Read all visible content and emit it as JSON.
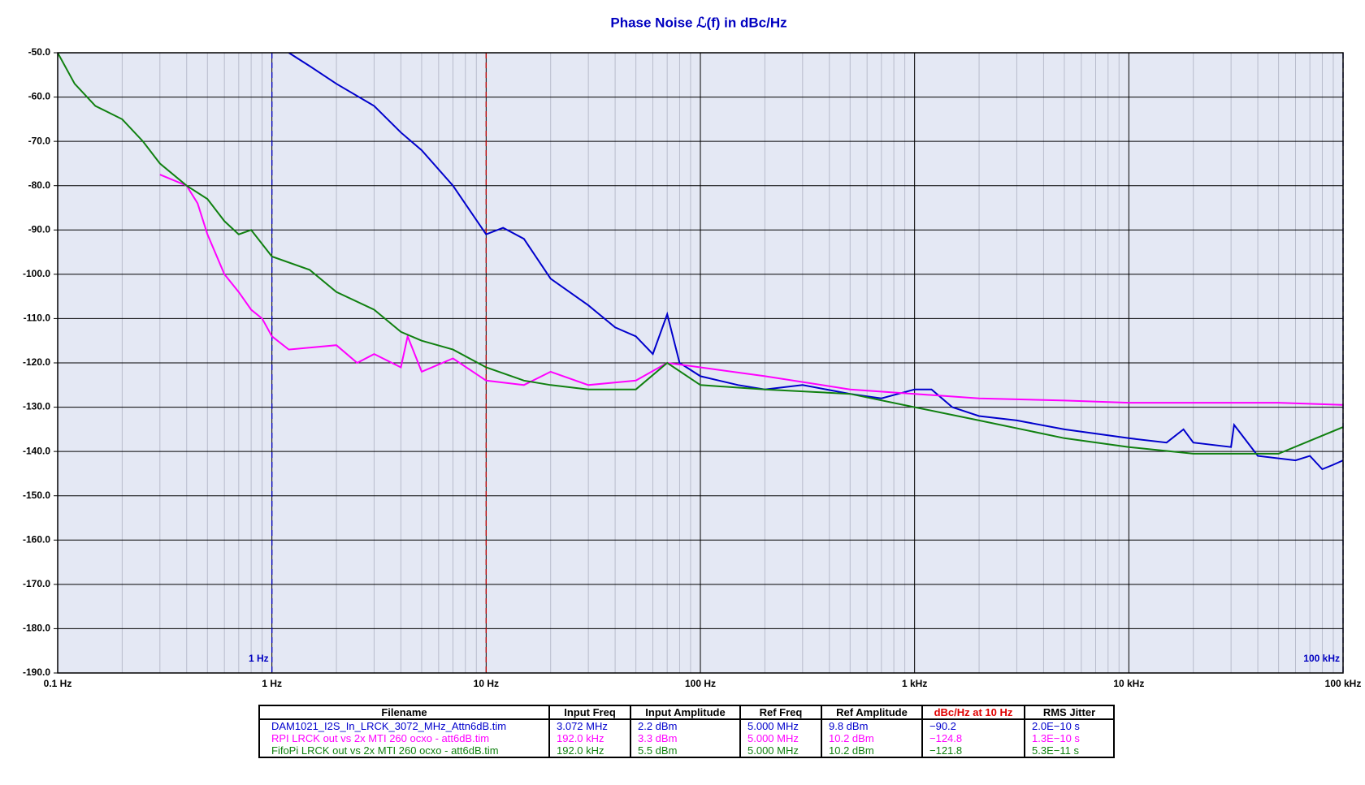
{
  "chart_data": {
    "type": "line",
    "title": "Phase Noise ℒ(f) in dBc/Hz",
    "log_x": true,
    "grid": true,
    "xlim": [
      0.1,
      100000
    ],
    "xticks": [
      {
        "value": 0.1,
        "label": "0.1 Hz"
      },
      {
        "value": 1,
        "label": "1 Hz"
      },
      {
        "value": 10,
        "label": "10 Hz"
      },
      {
        "value": 100,
        "label": "100 Hz"
      },
      {
        "value": 1000,
        "label": "1 kHz"
      },
      {
        "value": 10000,
        "label": "10 kHz"
      },
      {
        "value": 100000,
        "label": "100 kHz"
      }
    ],
    "ylim": [
      -190,
      -50
    ],
    "yticks": [
      {
        "value": -50,
        "label": "-50.0"
      },
      {
        "value": -60,
        "label": "-60.0"
      },
      {
        "value": -70,
        "label": "-70.0"
      },
      {
        "value": -80,
        "label": "-80.0"
      },
      {
        "value": -90,
        "label": "-90.0"
      },
      {
        "value": -100,
        "label": "-100.0"
      },
      {
        "value": -110,
        "label": "-110.0"
      },
      {
        "value": -120,
        "label": "-120.0"
      },
      {
        "value": -130,
        "label": "-130.0"
      },
      {
        "value": -140,
        "label": "-140.0"
      },
      {
        "value": -150,
        "label": "-150.0"
      },
      {
        "value": -160,
        "label": "-160.0"
      },
      {
        "value": -170,
        "label": "-170.0"
      },
      {
        "value": -180,
        "label": "-180.0"
      },
      {
        "value": -190,
        "label": "-190.0"
      }
    ],
    "markers": [
      {
        "x": 1,
        "label": "1 Hz",
        "color": "#0000c0"
      },
      {
        "x": 100000,
        "label": "100 kHz",
        "color": "#0000c0"
      },
      {
        "x": 10,
        "color": "#c00000"
      }
    ],
    "series": [
      {
        "name": "DAM1021_I2S_In_LRCK_3072_MHz_Attn6dB.tim",
        "color": "#0000cc",
        "x": [
          1.2,
          1.5,
          2,
          3,
          4,
          5,
          7,
          10,
          12,
          15,
          20,
          30,
          40,
          50,
          60,
          70,
          80,
          100,
          150,
          200,
          300,
          500,
          700,
          1000,
          1200,
          1500,
          2000,
          3000,
          5000,
          10000,
          15000,
          18000,
          20000,
          30000,
          31000,
          40000,
          60000,
          70000,
          80000,
          90000,
          100000
        ],
        "values": [
          -50,
          -53,
          -57,
          -62,
          -68,
          -72,
          -80,
          -91,
          -89.5,
          -92,
          -101,
          -107,
          -112,
          -114,
          -118,
          -109,
          -120,
          -123,
          -125,
          -126,
          -125,
          -127,
          -128,
          -126,
          -126,
          -130,
          -132,
          -133,
          -135,
          -137,
          -138,
          -135,
          -138,
          -139,
          -134,
          -141,
          -142,
          -141,
          -144,
          -143,
          -142
        ]
      },
      {
        "name": "RPI LRCK out vs 2x MTI 260 ocxo - att6dB.tim",
        "color": "#ff00ff",
        "x": [
          0.3,
          0.4,
          0.45,
          0.5,
          0.6,
          0.7,
          0.8,
          0.9,
          1,
          1.2,
          2,
          2.5,
          3,
          4,
          4.3,
          5,
          7,
          10,
          15,
          20,
          30,
          50,
          70,
          100,
          200,
          500,
          1000,
          2000,
          5000,
          10000,
          20000,
          50000,
          100000
        ],
        "values": [
          -77.5,
          -80,
          -84,
          -91,
          -100,
          -104,
          -108,
          -110,
          -114,
          -117,
          -116,
          -120,
          -118,
          -121,
          -114,
          -122,
          -119,
          -124,
          -125,
          -122,
          -125,
          -124,
          -120,
          -121,
          -123,
          -126,
          -127,
          -128,
          -128.5,
          -129,
          -129,
          -129,
          -129.5
        ]
      },
      {
        "name": "FifoPi LRCK out vs 2x MTI 260 ocxo - att6dB.tim",
        "color": "#108010",
        "x": [
          0.1,
          0.12,
          0.15,
          0.2,
          0.25,
          0.3,
          0.4,
          0.5,
          0.6,
          0.7,
          0.8,
          1,
          1.5,
          2,
          3,
          4,
          5,
          7,
          10,
          15,
          20,
          30,
          50,
          70,
          100,
          200,
          500,
          1000,
          2000,
          5000,
          10000,
          20000,
          50000,
          100000
        ],
        "values": [
          -50,
          -57,
          -62,
          -65,
          -70,
          -75,
          -80,
          -83,
          -88,
          -91,
          -90,
          -96,
          -99,
          -104,
          -108,
          -113,
          -115,
          -117,
          -121,
          -124,
          -125,
          -126,
          -126,
          -120,
          -125,
          -126,
          -127,
          -130,
          -133,
          -137,
          -139,
          -140.5,
          -140.5,
          -134.5
        ]
      }
    ]
  },
  "table": {
    "columns": [
      "Filename",
      "Input Freq",
      "Input Amplitude",
      "Ref Freq",
      "Ref Amplitude",
      "dBc/Hz at 10 Hz",
      "RMS Jitter"
    ],
    "rows": [
      [
        "DAM1021_I2S_In_LRCK_3072_MHz_Attn6dB.tim",
        "3.072 MHz",
        "2.2 dBm",
        "5.000 MHz",
        "9.8 dBm",
        "−90.2",
        "2.0E−10 s"
      ],
      [
        "RPI LRCK out vs 2x MTI 260 ocxo - att6dB.tim",
        "192.0 kHz",
        "3.3 dBm",
        "5.000 MHz",
        "10.2 dBm",
        "−124.8",
        "1.3E−10 s"
      ],
      [
        "FifoPi LRCK out vs 2x MTI 260 ocxo - att6dB.tim",
        "192.0 kHz",
        "5.5 dBm",
        "5.000 MHz",
        "10.2 dBm",
        "−121.8",
        "5.3E−11 s"
      ]
    ]
  }
}
